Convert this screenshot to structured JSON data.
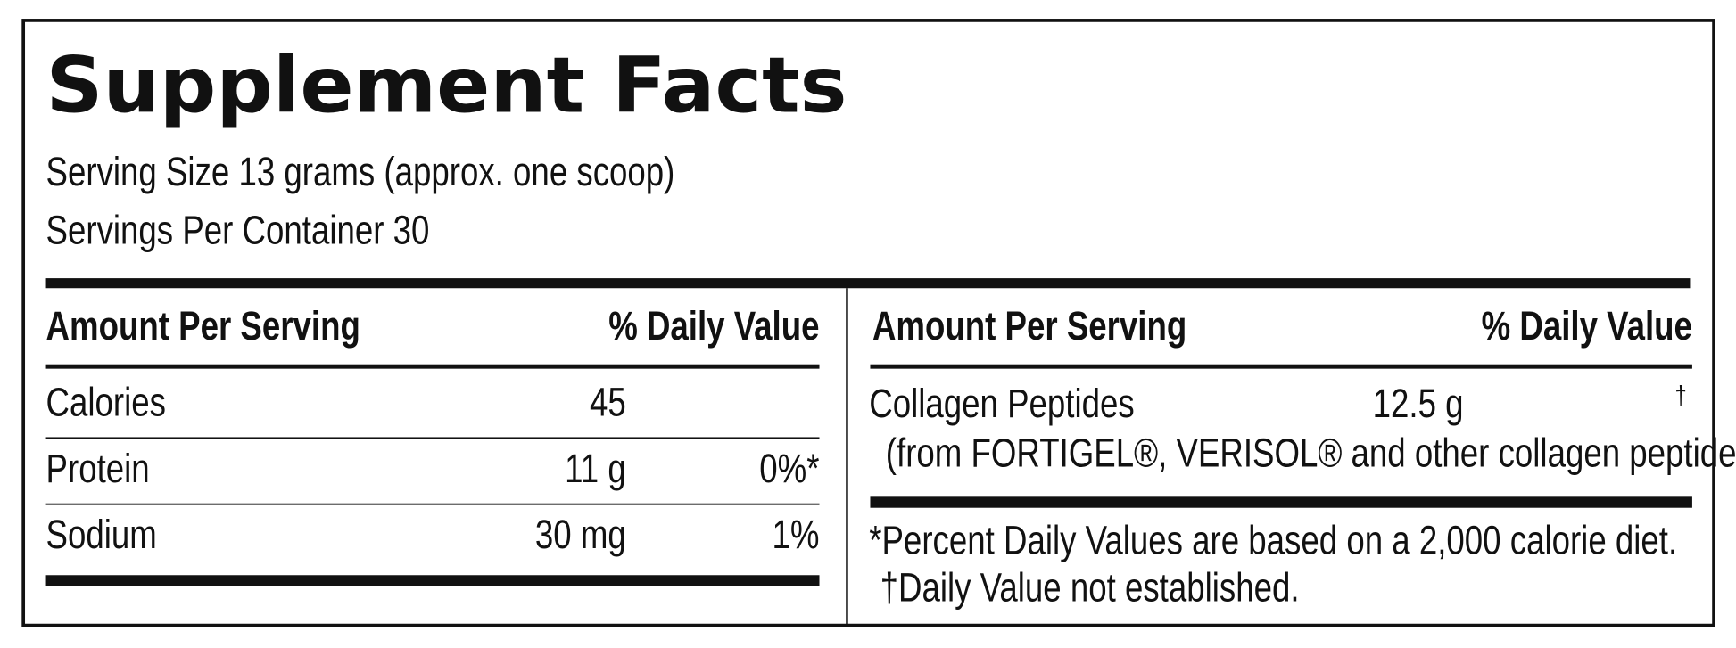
{
  "title": "Supplement Facts",
  "serving_size": "Serving Size 13 grams (approx. one scoop)",
  "servings_per_container": "Servings Per Container 30",
  "left_table": {
    "header": [
      "Amount Per Serving",
      "% Daily Value"
    ],
    "rows": [
      {
        "name": "Calories",
        "amount": "45"
      },
      {
        "name": "Protein",
        "amount": "11 g",
        "daily_value": "0%*"
      },
      {
        "name": "Sodium",
        "amount": "30 mg",
        "daily_value": "1%"
      }
    ]
  },
  "right_table": {
    "header": [
      "Amount Per Serving",
      "% Daily Value"
    ],
    "rows": [
      {
        "name": "Collagen Peptides",
        "amount": "12.5 g",
        "daily_value": "†",
        "note": "(from FORTIGEL®, VERISOL® and other collagen peptides)"
      }
    ]
  },
  "footnotes": [
    "*Percent Daily Values are based on a 2,000 calorie diet.",
    "†Daily Value not established."
  ]
}
